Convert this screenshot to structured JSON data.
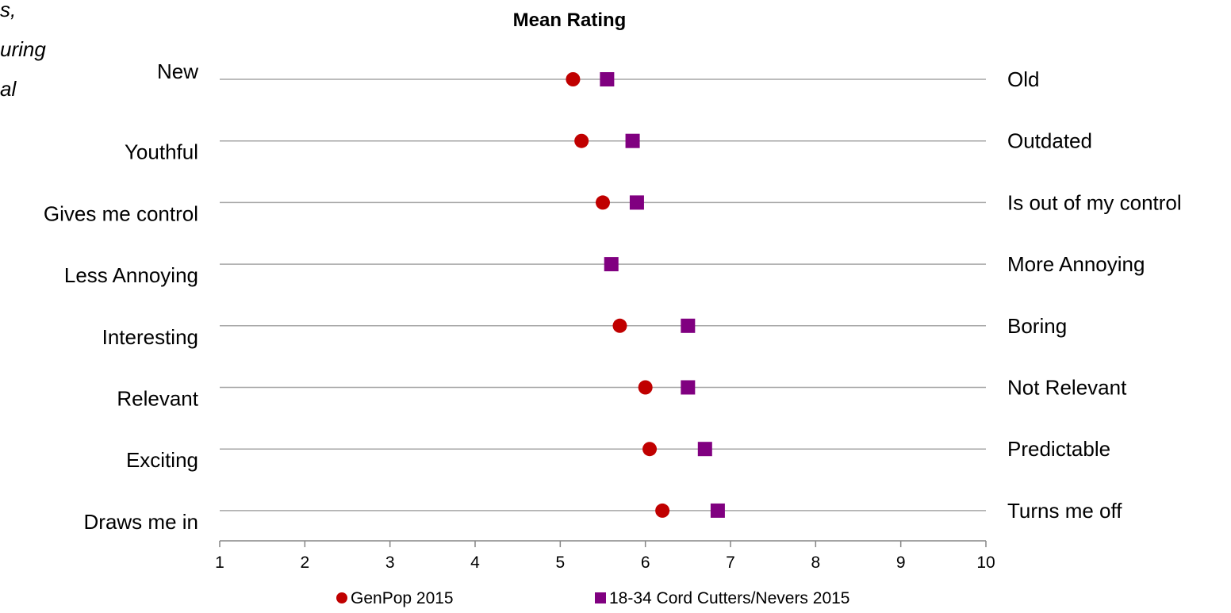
{
  "cut_text": [
    "s,",
    "uring",
    "al"
  ],
  "chart_data": {
    "type": "scatter",
    "title": "Mean Rating",
    "xlabel": "",
    "ylabel": "",
    "xlim": [
      1,
      10
    ],
    "x_ticks": [
      1,
      2,
      3,
      4,
      5,
      6,
      7,
      8,
      9,
      10
    ],
    "grid": "horizontal",
    "legend": "bottom",
    "rows": [
      {
        "left": "New",
        "right": "Old"
      },
      {
        "left": "Youthful",
        "right": "Outdated"
      },
      {
        "left": "Gives me control",
        "right": "Is out of my control"
      },
      {
        "left": "Less Annoying",
        "right": "More Annoying"
      },
      {
        "left": "Interesting",
        "right": "Boring"
      },
      {
        "left": "Relevant",
        "right": "Not Relevant"
      },
      {
        "left": "Exciting",
        "right": "Predictable"
      },
      {
        "left": "Draws me in",
        "right": "Turns me off"
      }
    ],
    "series": [
      {
        "name": "GenPop 2015",
        "marker": "circle",
        "color": "#C00000",
        "values": [
          5.15,
          5.25,
          5.5,
          null,
          5.7,
          6.0,
          6.05,
          6.2
        ]
      },
      {
        "name": "18-34 Cord Cutters/Nevers 2015",
        "marker": "square",
        "color": "#800080",
        "values": [
          5.55,
          5.85,
          5.9,
          5.6,
          6.5,
          6.5,
          6.7,
          6.85
        ]
      }
    ]
  }
}
